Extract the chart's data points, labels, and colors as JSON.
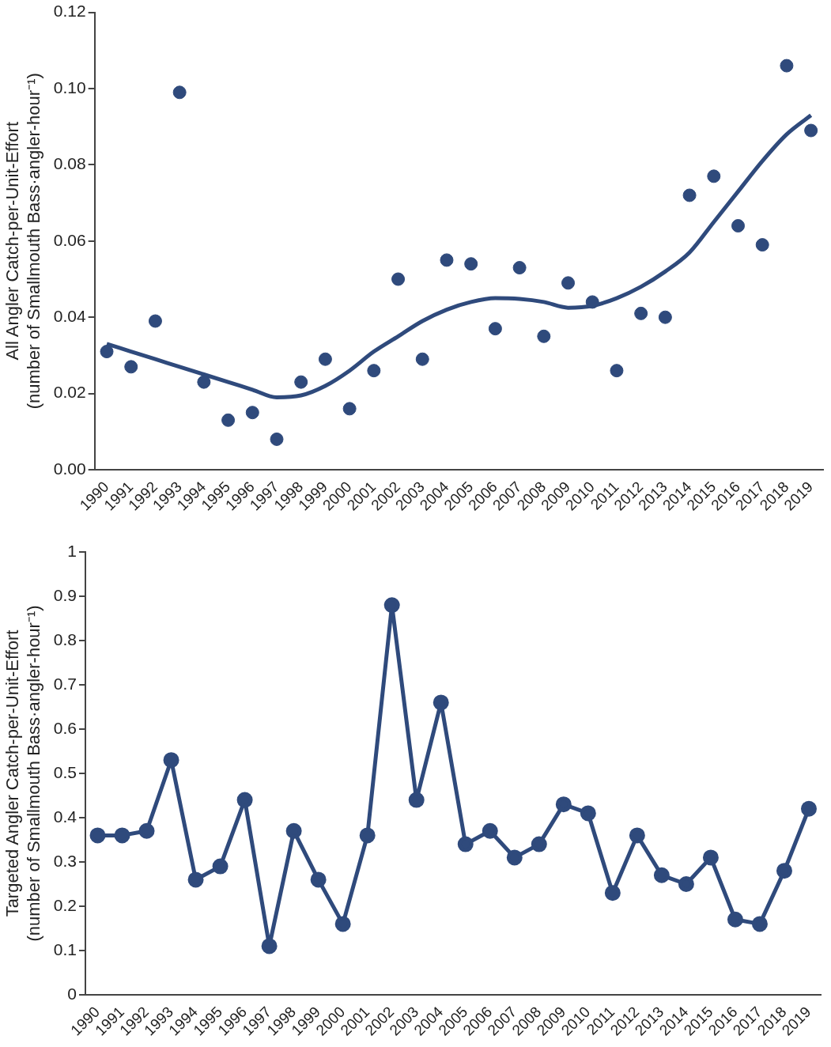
{
  "chart_data": [
    {
      "type": "scatter",
      "ylabel": "All Angler Catch-per-Unit-Effort\n(number of Smallmouth Bass·angler-hour⁻¹)",
      "categories": [
        "1990",
        "1991",
        "1992",
        "1993",
        "1994",
        "1995",
        "1996",
        "1997",
        "1998",
        "1999",
        "2000",
        "2001",
        "2002",
        "2003",
        "2004",
        "2005",
        "2006",
        "2007",
        "2008",
        "2009",
        "2010",
        "2011",
        "2012",
        "2013",
        "2014",
        "2015",
        "2016",
        "2017",
        "2018",
        "2019"
      ],
      "series": [
        {
          "color": "#2f4a7c",
          "marker": "circle",
          "values": [
            0.031,
            0.027,
            0.039,
            0.099,
            0.023,
            0.013,
            0.015,
            0.008,
            0.023,
            0.029,
            0.016,
            0.026,
            0.05,
            0.029,
            0.055,
            0.054,
            0.037,
            0.053,
            0.035,
            0.049,
            0.044,
            0.026,
            0.041,
            0.04,
            0.072,
            0.077,
            0.064,
            0.059,
            0.106,
            0.089
          ]
        },
        {
          "type": "line",
          "color": "#2f4a7c",
          "marker": "none",
          "values": [
            0.033,
            0.031,
            0.029,
            0.027,
            0.025,
            0.023,
            0.021,
            0.019,
            0.0195,
            0.022,
            0.026,
            0.031,
            0.035,
            0.039,
            0.042,
            0.044,
            0.045,
            0.0448,
            0.044,
            0.0425,
            0.043,
            0.045,
            0.048,
            0.052,
            0.057,
            0.065,
            0.073,
            0.081,
            0.088,
            0.093
          ]
        }
      ],
      "ylim": [
        0,
        0.12
      ],
      "yticks": [
        {
          "value": 0,
          "label": "0.00"
        },
        {
          "value": 0.02,
          "label": "0.02"
        },
        {
          "value": 0.04,
          "label": "0.04"
        },
        {
          "value": 0.06,
          "label": "0.06"
        },
        {
          "value": 0.08,
          "label": "0.08"
        },
        {
          "value": 0.1,
          "label": "0.10"
        },
        {
          "value": 0.12,
          "label": "0.12"
        }
      ],
      "grid": false,
      "legend": false
    },
    {
      "type": "line",
      "ylabel": "Targeted Angler Catch-per-Unit-Effort\n(number of Smallmouth Bass·angler-hour⁻¹)",
      "categories": [
        "1990",
        "1991",
        "1992",
        "1993",
        "1994",
        "1995",
        "1996",
        "1997",
        "1998",
        "1999",
        "2000",
        "2001",
        "2002",
        "2003",
        "2004",
        "2005",
        "2006",
        "2007",
        "2008",
        "2009",
        "2010",
        "2011",
        "2012",
        "2013",
        "2014",
        "2015",
        "2016",
        "2017",
        "2018",
        "2019"
      ],
      "series": [
        {
          "color": "#2f4a7c",
          "values": [
            0.36,
            0.36,
            0.37,
            0.53,
            0.26,
            0.29,
            0.44,
            0.11,
            0.37,
            0.26,
            0.16,
            0.36,
            0.88,
            0.44,
            0.66,
            0.34,
            0.37,
            0.31,
            0.34,
            0.43,
            0.41,
            0.23,
            0.36,
            0.27,
            0.25,
            0.31,
            0.17,
            0.16,
            0.28,
            0.42
          ]
        }
      ],
      "ylim": [
        0,
        1
      ],
      "yticks": [
        0,
        0.1,
        0.2,
        0.3,
        0.4,
        0.5,
        0.6,
        0.7,
        0.8,
        0.9,
        1
      ],
      "marker": "circle",
      "line_style": "solid",
      "grid": false,
      "legend": false
    }
  ]
}
